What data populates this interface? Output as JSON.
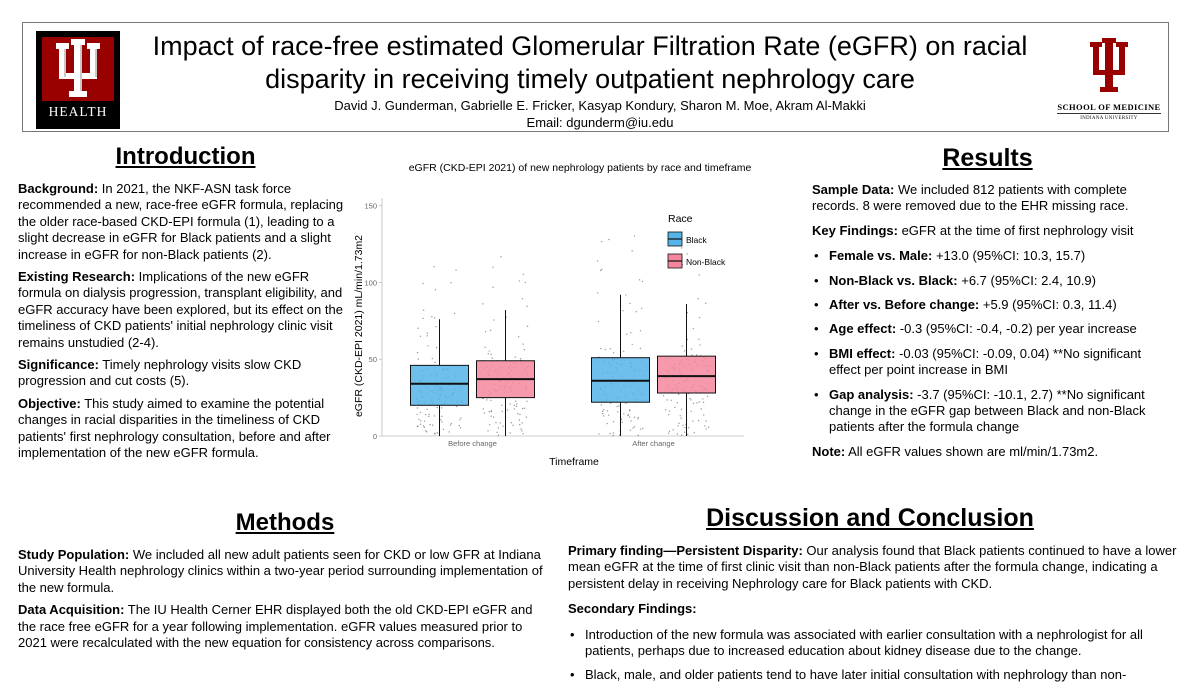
{
  "header": {
    "title_line1": "Impact of race-free estimated Glomerular Filtration Rate (eGFR) on racial",
    "title_line2": "disparity in receiving timely outpatient nephrology care",
    "authors": "David J. Gunderman, Gabrielle E. Fricker, Kasyap Kondury, Sharon M. Moe, Akram Al-Makki",
    "email": "Email: dgunderm@iu.edu",
    "logo_left_text": "HEALTH",
    "logo_right_text": "SCHOOL OF MEDICINE",
    "logo_right_subtext": "INDIANA UNIVERSITY",
    "brand_color": "#990000"
  },
  "introduction": {
    "heading": "Introduction",
    "paragraphs": [
      {
        "label": "Background:",
        "text": " In 2021, the NKF-ASN task force recommended a new, race-free eGFR formula, replacing the older race-based CKD-EPI formula (1), leading to a slight decrease in eGFR for Black patients and a slight increase in eGFR for non-Black patients (2)."
      },
      {
        "label": "Existing Research:",
        "text": " Implications of the new eGFR formula on dialysis progression, transplant eligibility, and eGFR accuracy have been explored, but its effect on the timeliness of CKD patients' initial nephrology clinic visit remains unstudied (2-4)."
      },
      {
        "label": "Significance:",
        "text": " Timely nephrology visits slow CKD progression and cut costs (5)."
      },
      {
        "label": "Objective:",
        "text": " This study aimed to examine the potential changes in racial disparities in the timeliness of CKD patients' first nephrology consultation, before and after implementation of the new eGFR formula."
      }
    ]
  },
  "methods": {
    "heading": "Methods",
    "paragraphs": [
      {
        "label": "Study Population:",
        "text": " We included all new adult patients seen for CKD or low GFR at Indiana University Health nephrology clinics within a two-year period surrounding implementation of the new formula."
      },
      {
        "label": "Data Acquisition:",
        "text": " The IU Health Cerner EHR displayed both the old CKD-EPI eGFR and the race free eGFR for a year following implementation. eGFR values measured prior to 2021 were recalculated with the new equation for consistency across comparisons."
      }
    ]
  },
  "results": {
    "heading": "Results",
    "sample": {
      "label": "Sample Data:",
      "text": " We included 812 patients with complete records. 8 were removed due to the EHR missing race."
    },
    "key": {
      "label": "Key Findings:",
      "text": " eGFR at the time of first nephrology visit"
    },
    "bullets": [
      {
        "label": "Female vs. Male:",
        "text": " +13.0 (95%CI: 10.3, 15.7)"
      },
      {
        "label": "Non-Black vs. Black:",
        "text": " +6.7 (95%CI: 2.4, 10.9)"
      },
      {
        "label": "After vs. Before change:",
        "text": " +5.9 (95%CI: 0.3, 11.4)"
      },
      {
        "label": "Age effect:",
        "text": " -0.3 (95%CI: -0.4, -0.2) per year increase"
      },
      {
        "label": "BMI effect:",
        "text": " -0.03 (95%CI: -0.09, 0.04) **No significant effect per point increase in BMI"
      },
      {
        "label": "Gap analysis:",
        "text": " -3.7 (95%CI: -10.1, 2.7) **No significant change in the eGFR gap between Black and non-Black patients after the formula change"
      }
    ],
    "note": {
      "label": "Note:",
      "text": " All eGFR values shown are ml/min/1.73m2."
    }
  },
  "discussion": {
    "heading": "Discussion and Conclusion",
    "primary": {
      "label": "Primary finding—Persistent Disparity:",
      "text": " Our analysis found that Black patients continued to have a lower mean eGFR at the time of first clinic visit than non-Black patients after the formula change, indicating a persistent delay in receiving Nephrology care for Black patients with CKD."
    },
    "secondary_label": "Secondary Findings:",
    "bullets": [
      "Introduction of the new formula was associated with earlier consultation with a nephrologist for all patients, perhaps due to increased education about kidney disease due to the change.",
      "Black, male, and older patients tend to have later initial consultation with nephrology than non-"
    ]
  },
  "chart_data": {
    "type": "box",
    "title": "eGFR (CKD-EPI 2021) of new nephrology  patients by race and timeframe",
    "xlabel": "Timeframe",
    "ylabel": "eGFR (CKD-EPI 2021) mL/min/1.73m2",
    "categories": [
      "Before change",
      "After change"
    ],
    "ylim": [
      0,
      155
    ],
    "yticks": [
      0,
      50,
      100,
      150
    ],
    "legend_title": "Race",
    "legend_position": "top-right",
    "grid": false,
    "series": [
      {
        "name": "Black",
        "color": "#56B4E9",
        "boxes": [
          {
            "min": 0,
            "q1": 20,
            "median": 34,
            "q3": 46,
            "max": 76
          },
          {
            "min": 0,
            "q1": 22,
            "median": 36,
            "q3": 51,
            "max": 92
          }
        ]
      },
      {
        "name": "Non-Black",
        "color": "#F4879E",
        "boxes": [
          {
            "min": 0,
            "q1": 25,
            "median": 37,
            "q3": 49,
            "max": 82
          },
          {
            "min": 0,
            "q1": 28,
            "median": 39,
            "q3": 52,
            "max": 86
          }
        ]
      }
    ]
  }
}
